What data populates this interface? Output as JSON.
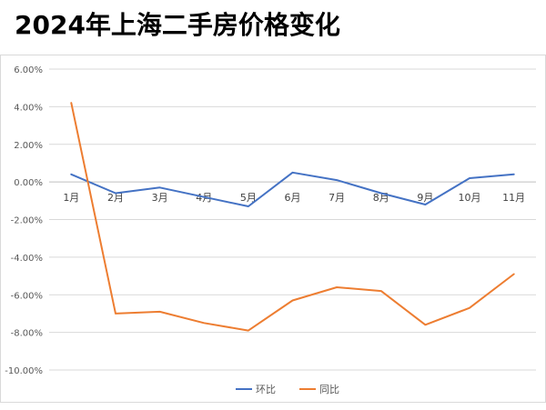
{
  "title": "2024年上海二手房价格变化",
  "chart_data": {
    "type": "line",
    "categories": [
      "1月",
      "2月",
      "3月",
      "4月",
      "5月",
      "6月",
      "7月",
      "8月",
      "9月",
      "10月",
      "11月"
    ],
    "series": [
      {
        "name": "环比",
        "color": "#4472c4",
        "values": [
          0.4,
          -0.6,
          -0.3,
          -0.8,
          -1.3,
          0.5,
          0.1,
          -0.6,
          -1.2,
          0.2,
          0.4
        ]
      },
      {
        "name": "同比",
        "color": "#ed7d31",
        "values": [
          4.2,
          -7.0,
          -6.9,
          -7.5,
          -7.9,
          -6.3,
          -5.6,
          -5.8,
          -7.6,
          -6.7,
          -4.9
        ]
      }
    ],
    "ylim": [
      -10,
      6
    ],
    "yticks": [
      "6.00%",
      "4.00%",
      "2.00%",
      "0.00%",
      "-2.00%",
      "-4.00%",
      "-6.00%",
      "-8.00%",
      "-10.00%"
    ],
    "ytick_values": [
      6,
      4,
      2,
      0,
      -2,
      -4,
      -6,
      -8,
      -10
    ],
    "grid": true,
    "legend_position": "bottom"
  }
}
